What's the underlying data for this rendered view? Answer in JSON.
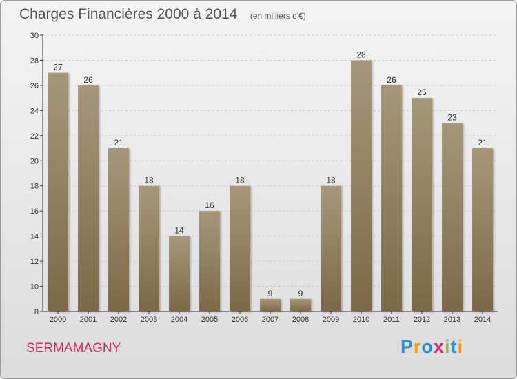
{
  "header": {
    "title": "Charges Financières 2000 à 2014",
    "subtitle": "(en milliers d'€)"
  },
  "footer": {
    "commune": "SERMAMAGNY",
    "logo_letters": [
      {
        "ch": "P",
        "color": "#2f8fd6"
      },
      {
        "ch": "r",
        "color": "#f39a1e"
      },
      {
        "ch": "o",
        "color": "#2f8fd6"
      },
      {
        "ch": "x",
        "color": "#d9286e"
      },
      {
        "ch": "i",
        "color": "#8cc63f"
      },
      {
        "ch": "t",
        "color": "#2f8fd6"
      },
      {
        "ch": "i",
        "color": "#f39a1e"
      }
    ]
  },
  "colors": {
    "bar_top": "#a7977a",
    "bar_bottom": "#7b6847",
    "commune": "#c4315a",
    "grid": "#cfcfcf",
    "axis": "#333333"
  },
  "chart_data": {
    "type": "bar",
    "title": "Charges Financières 2000 à 2014",
    "subtitle": "(en milliers d'€)",
    "xlabel": "",
    "ylabel": "",
    "categories": [
      "2000",
      "2001",
      "2002",
      "2003",
      "2004",
      "2005",
      "2006",
      "2007",
      "2008",
      "2009",
      "2010",
      "2011",
      "2012",
      "2013",
      "2014"
    ],
    "values": [
      27,
      26,
      21,
      18,
      14,
      16,
      18,
      9,
      9,
      18,
      28,
      26,
      25,
      23,
      21
    ],
    "ylim": [
      8,
      30
    ],
    "yticks": [
      8,
      10,
      12,
      14,
      16,
      18,
      20,
      22,
      24,
      26,
      28,
      30
    ],
    "grid": true,
    "legend": "none"
  }
}
